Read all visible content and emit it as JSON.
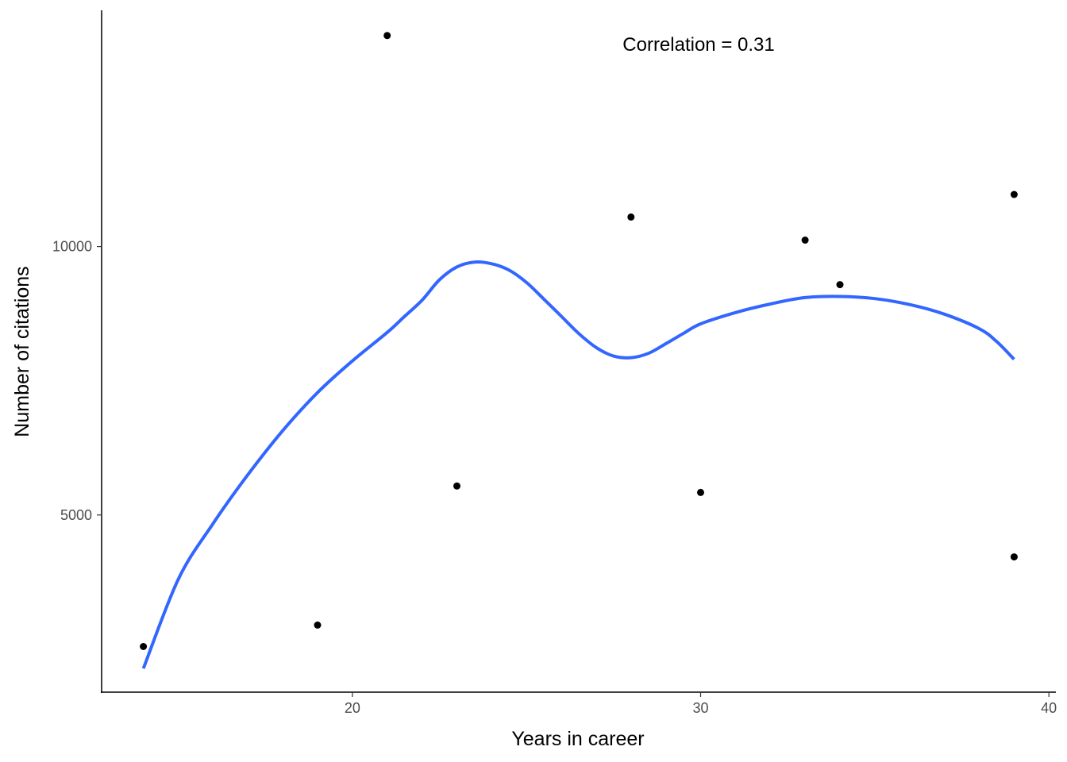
{
  "chart_data": {
    "type": "scatter",
    "xlabel": "Years in career",
    "ylabel": "Number of citations",
    "annotation": "Correlation = 0.31",
    "xlim": [
      12.8,
      40.2
    ],
    "ylim": [
      1700,
      14400
    ],
    "x_ticks": [
      20,
      30,
      40
    ],
    "y_ticks": [
      5000,
      10000
    ],
    "grid": false,
    "legend": "none",
    "colors": {
      "points": "#000000",
      "smooth_line": "#3366FF",
      "axis": "#000000",
      "tick_labels": "#4D4D4D"
    },
    "series": [
      {
        "points": [
          {
            "x": 14,
            "y": 2550
          },
          {
            "x": 19,
            "y": 2950
          },
          {
            "x": 21,
            "y": 13930
          },
          {
            "x": 23,
            "y": 5540
          },
          {
            "x": 28,
            "y": 10550
          },
          {
            "x": 30,
            "y": 5420
          },
          {
            "x": 33,
            "y": 10120
          },
          {
            "x": 34,
            "y": 9290
          },
          {
            "x": 39,
            "y": 10970
          },
          {
            "x": 39,
            "y": 4220
          }
        ]
      }
    ],
    "smooth": {
      "method": "loess",
      "points": [
        {
          "x": 14.0,
          "y": 2140
        },
        {
          "x": 15.0,
          "y": 3800
        },
        {
          "x": 16.0,
          "y": 4840
        },
        {
          "x": 17.0,
          "y": 5750
        },
        {
          "x": 18.0,
          "y": 6570
        },
        {
          "x": 19.0,
          "y": 7280
        },
        {
          "x": 20.0,
          "y": 7870
        },
        {
          "x": 21.0,
          "y": 8400
        },
        {
          "x": 21.5,
          "y": 8700
        },
        {
          "x": 22.0,
          "y": 9000
        },
        {
          "x": 22.5,
          "y": 9380
        },
        {
          "x": 23.0,
          "y": 9620
        },
        {
          "x": 23.5,
          "y": 9710
        },
        {
          "x": 24.0,
          "y": 9680
        },
        {
          "x": 24.5,
          "y": 9560
        },
        {
          "x": 25.0,
          "y": 9330
        },
        {
          "x": 25.5,
          "y": 9020
        },
        {
          "x": 26.0,
          "y": 8700
        },
        {
          "x": 26.5,
          "y": 8380
        },
        {
          "x": 27.0,
          "y": 8120
        },
        {
          "x": 27.5,
          "y": 7960
        },
        {
          "x": 28.0,
          "y": 7930
        },
        {
          "x": 28.5,
          "y": 8010
        },
        {
          "x": 29.0,
          "y": 8190
        },
        {
          "x": 29.5,
          "y": 8380
        },
        {
          "x": 30.0,
          "y": 8560
        },
        {
          "x": 31.0,
          "y": 8770
        },
        {
          "x": 32.0,
          "y": 8930
        },
        {
          "x": 33.0,
          "y": 9050
        },
        {
          "x": 34.0,
          "y": 9070
        },
        {
          "x": 35.0,
          "y": 9030
        },
        {
          "x": 36.0,
          "y": 8920
        },
        {
          "x": 37.0,
          "y": 8740
        },
        {
          "x": 38.0,
          "y": 8470
        },
        {
          "x": 38.5,
          "y": 8230
        },
        {
          "x": 39.0,
          "y": 7900
        }
      ]
    }
  }
}
